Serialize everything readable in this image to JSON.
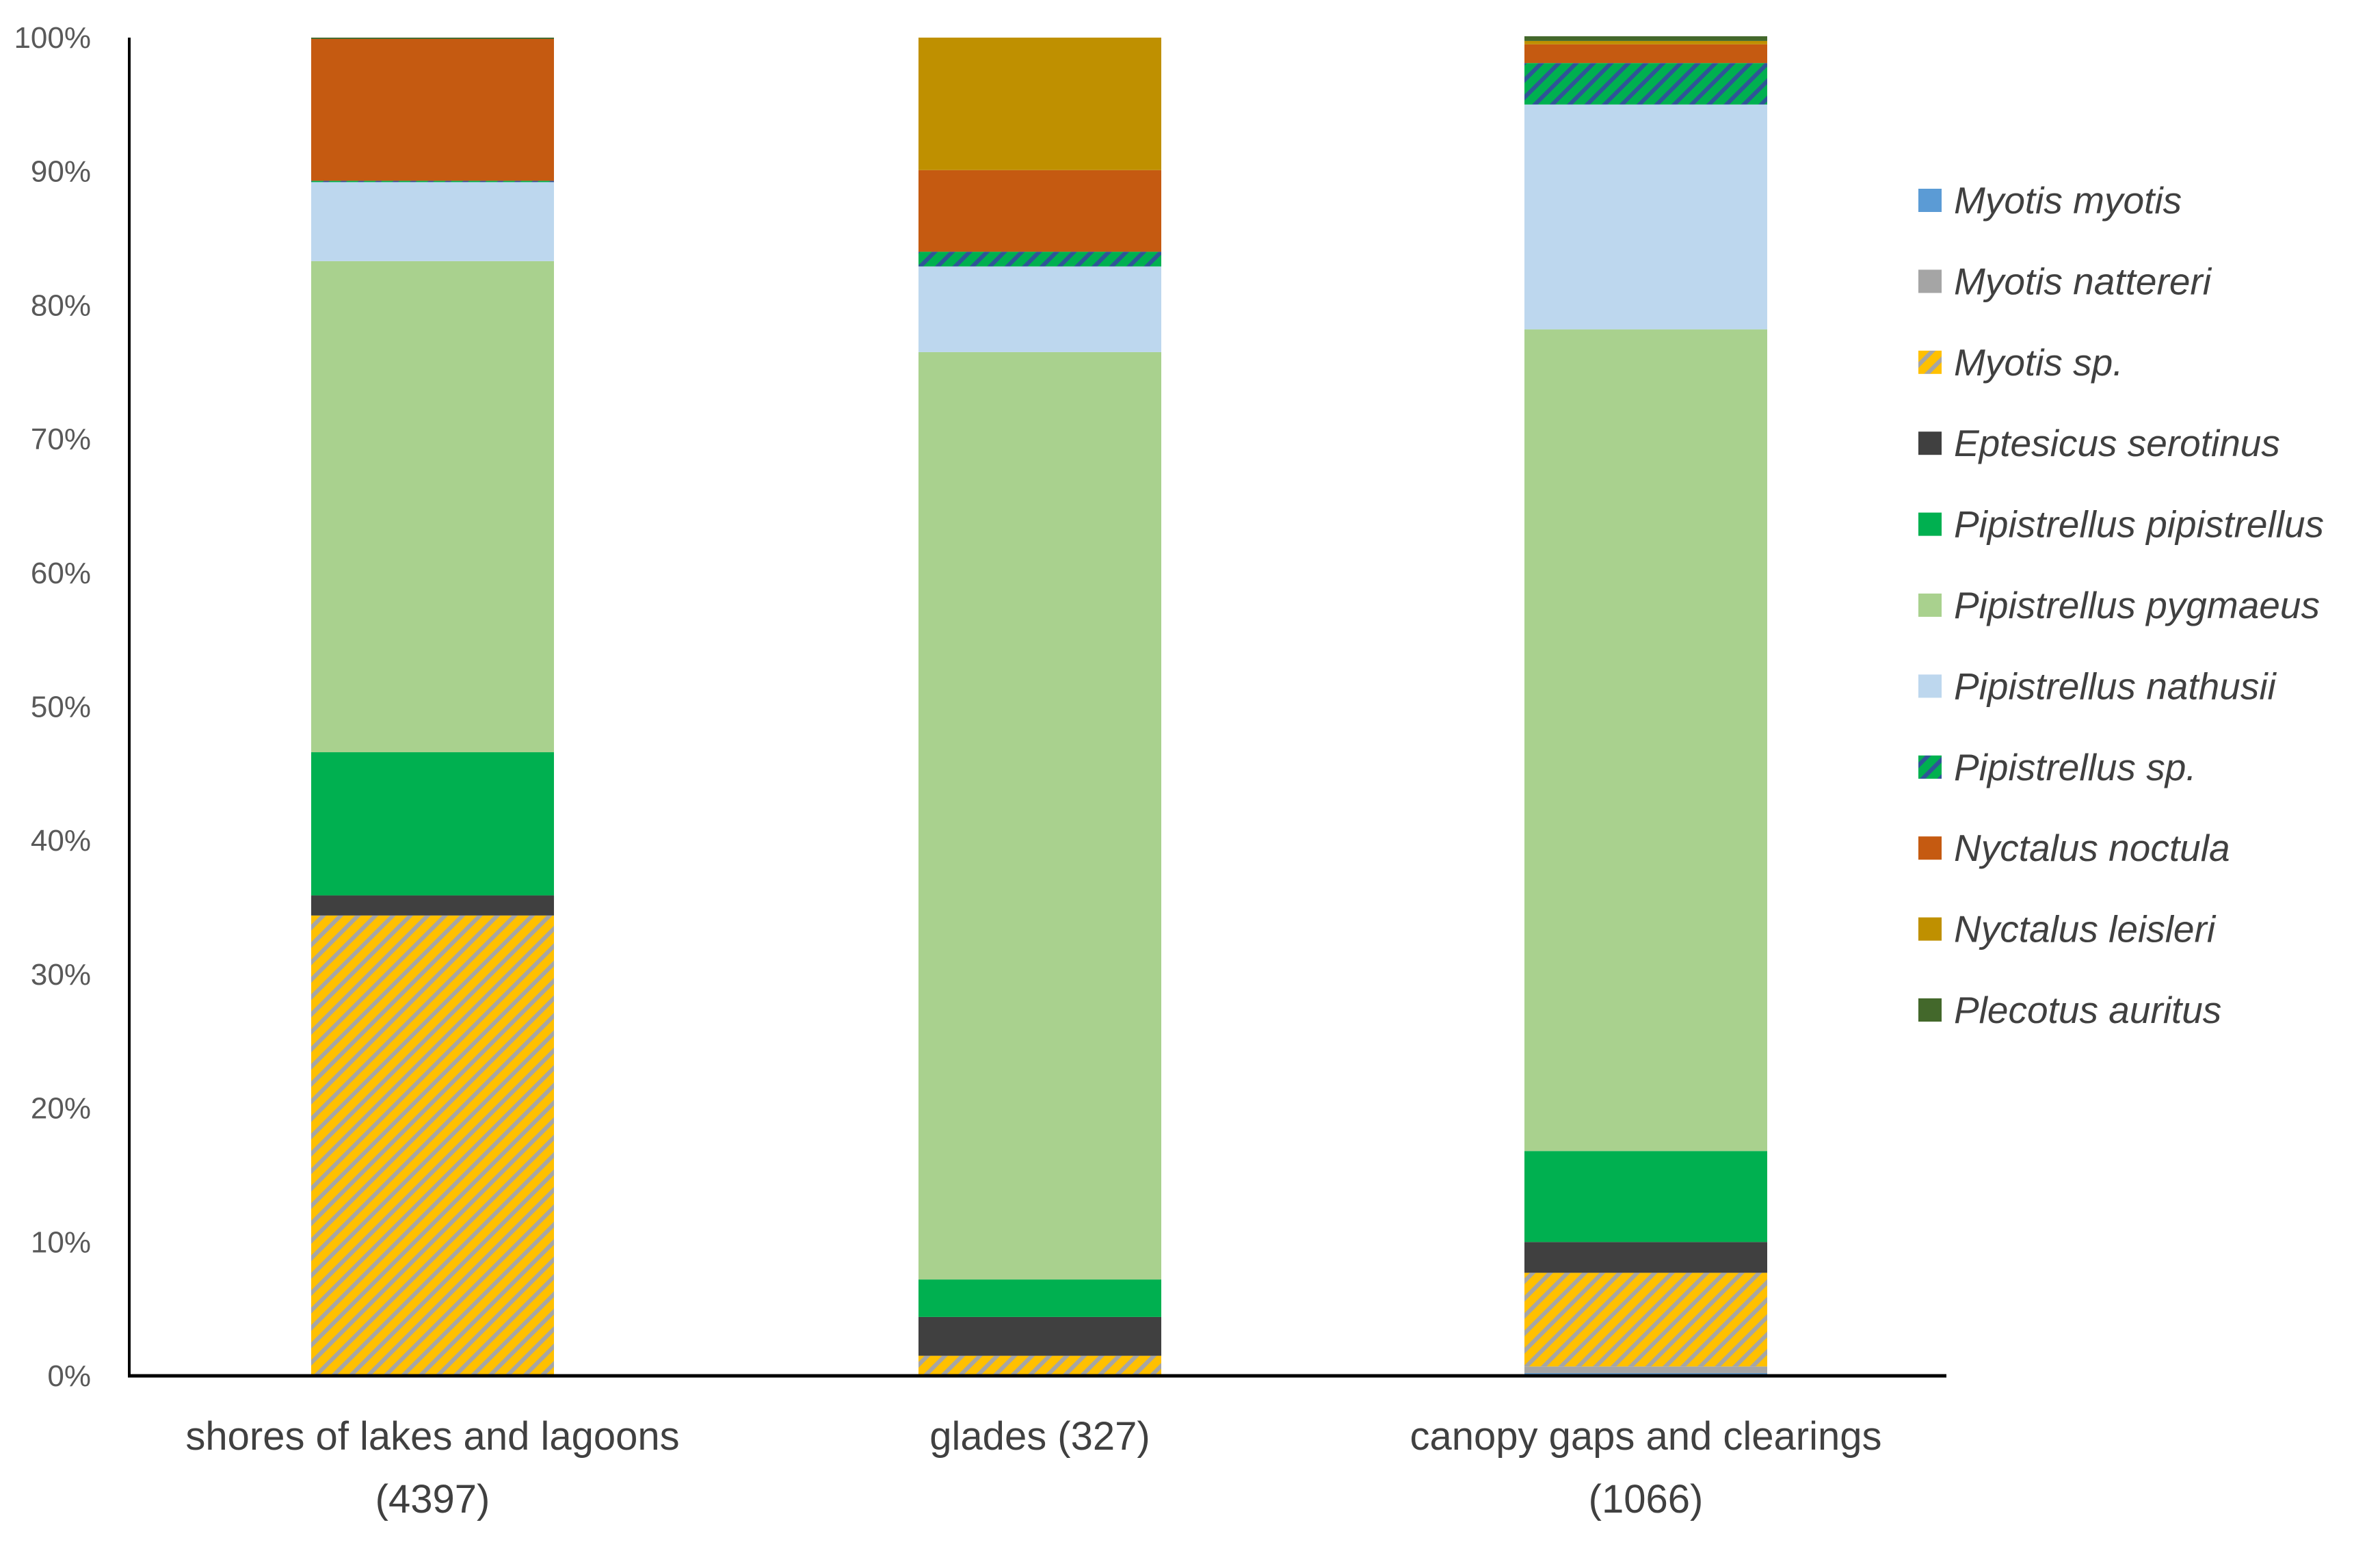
{
  "chart_data": {
    "type": "bar",
    "stacked": true,
    "percent": true,
    "title": "",
    "xlabel": "",
    "ylabel": "",
    "ylim": [
      0,
      100
    ],
    "yticks": [
      "0%",
      "10%",
      "20%",
      "30%",
      "40%",
      "50%",
      "60%",
      "70%",
      "80%",
      "90%",
      "100%"
    ],
    "categories": [
      [
        "shores of lakes and lagoons",
        "(4397)"
      ],
      [
        "glades (327)",
        ""
      ],
      [
        "canopy gaps and clearings",
        "(1066)"
      ]
    ],
    "legend_position": "right",
    "series": [
      {
        "name": "Myotis myotis",
        "color": "#5B9BD5",
        "values": [
          0,
          0,
          0.2
        ]
      },
      {
        "name": "Myotis nattereri",
        "color": "#A5A5A5",
        "values": [
          0,
          0,
          0.5
        ]
      },
      {
        "name": "Myotis sp.",
        "color": "#FFC000",
        "stripe": "#A5A5A5",
        "values": [
          34.4,
          1.5,
          7.0
        ]
      },
      {
        "name": "Eptesicus serotinus",
        "color": "#404040",
        "values": [
          1.5,
          2.9,
          2.3
        ]
      },
      {
        "name": "Pipistrellus pipistrellus",
        "color": "#00B050",
        "values": [
          10.7,
          2.8,
          6.8
        ]
      },
      {
        "name": "Pipistrellus pygmaeus",
        "color": "#A9D18E",
        "values": [
          36.7,
          69.3,
          61.4
        ]
      },
      {
        "name": "Pipistrellus nathusii",
        "color": "#BDD7EE",
        "values": [
          5.9,
          6.4,
          16.8
        ]
      },
      {
        "name": "Pipistrellus sp.",
        "color": "#00B050",
        "stripe": "#2F5597",
        "values": [
          0.1,
          1.1,
          3.1
        ]
      },
      {
        "name": "Nyctalus noctula",
        "color": "#C55A11",
        "values": [
          10.6,
          6.1,
          1.4
        ]
      },
      {
        "name": "Nyctalus leisleri",
        "color": "#BF9000",
        "values": [
          0,
          9.9,
          0.25
        ]
      },
      {
        "name": "Plecotus auritus",
        "color": "#43682B",
        "values": [
          0.1,
          0,
          0.35
        ]
      }
    ]
  }
}
